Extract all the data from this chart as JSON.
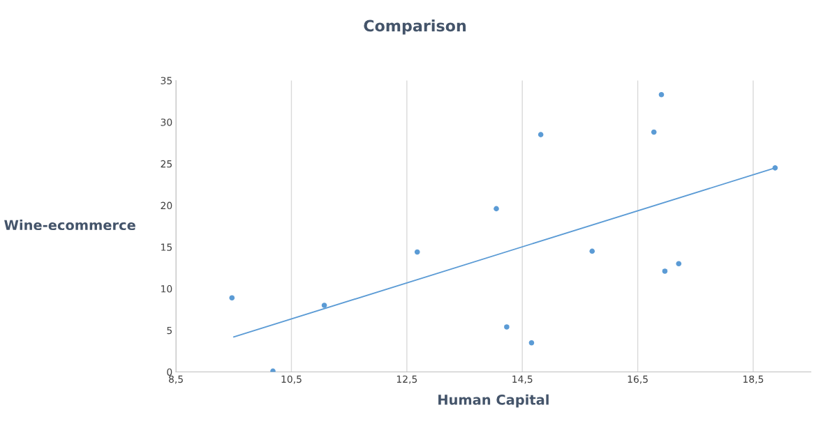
{
  "chart_data": {
    "type": "scatter",
    "title": "Comparison",
    "xlabel": "Human Capital",
    "ylabel": "Wine-ecommerce",
    "x": [
      9.47,
      10.18,
      11.07,
      12.68,
      14.05,
      14.23,
      14.66,
      14.82,
      15.71,
      16.78,
      16.91,
      16.97,
      17.21,
      18.88
    ],
    "series": [
      {
        "color": "#5b9bd5",
        "values": [
          8.9,
          0.1,
          8.0,
          14.4,
          19.6,
          5.4,
          3.5,
          28.5,
          14.5,
          28.8,
          33.3,
          12.1,
          13.0,
          24.5
        ]
      },
      {
        "type": "line",
        "color": "#5b9bd5",
        "x": [
          9.5,
          18.88
        ],
        "values": [
          4.2,
          24.5
        ],
        "marker": "none"
      }
    ],
    "marker": "circle",
    "grid": "x",
    "xlim": [
      8.5,
      19.5
    ],
    "xticks": [
      {
        "value": 8.5,
        "label": "8,5"
      },
      {
        "value": 10.5,
        "label": "10,5"
      },
      {
        "value": 12.5,
        "label": "12,5"
      },
      {
        "value": 14.5,
        "label": "14,5"
      },
      {
        "value": 16.5,
        "label": "16,5"
      },
      {
        "value": 18.5,
        "label": "18,5"
      }
    ],
    "ylim": [
      0,
      35
    ],
    "yticks": [
      0,
      5,
      10,
      15,
      20,
      25,
      30,
      35
    ]
  }
}
